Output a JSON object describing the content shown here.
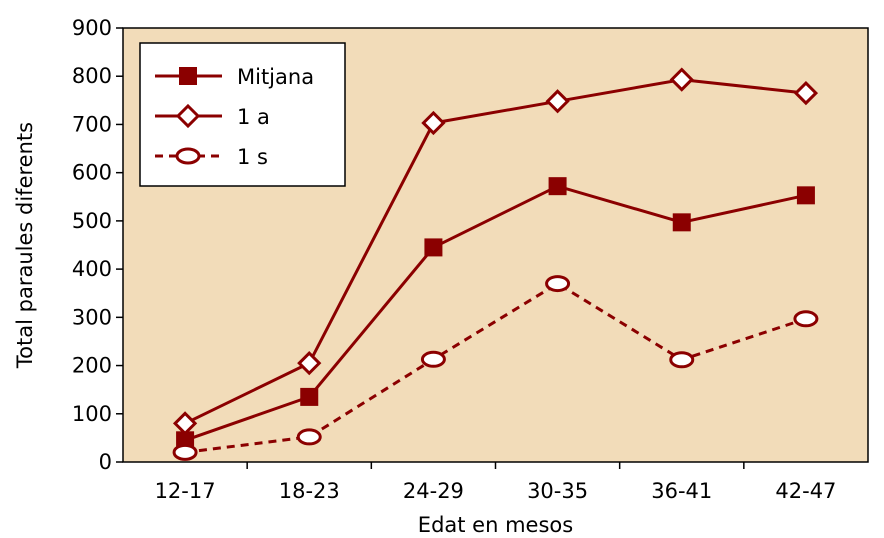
{
  "chart_data": {
    "type": "line",
    "title": "",
    "xlabel": "Edat en mesos",
    "ylabel": "Total paraules diferents",
    "categories": [
      "12-17",
      "18-23",
      "24-29",
      "30-35",
      "36-41",
      "42-47"
    ],
    "ylim": [
      0,
      900
    ],
    "yticks": [
      "0",
      "100",
      "200",
      "300",
      "400",
      "500",
      "600",
      "700",
      "800",
      "900"
    ],
    "grid": false,
    "legend_position": "top-left",
    "background_color": "#f2dcb9",
    "series": [
      {
        "name": "Mitjana",
        "values": [
          45,
          135,
          445,
          572,
          497,
          553
        ],
        "marker": "square",
        "line": "solid",
        "color": "#8b0000"
      },
      {
        "name": "1 a",
        "values": [
          80,
          205,
          703,
          748,
          793,
          765
        ],
        "marker": "diamond-open",
        "line": "solid",
        "color": "#8b0000"
      },
      {
        "name": "1 s",
        "values": [
          20,
          52,
          213,
          370,
          212,
          297
        ],
        "marker": "circle-open",
        "line": "dashed",
        "color": "#8b0000"
      }
    ]
  }
}
